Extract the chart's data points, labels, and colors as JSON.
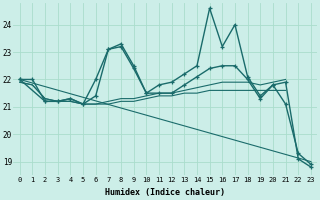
{
  "xlabel": "Humidex (Indice chaleur)",
  "bg_color": "#cceee8",
  "line_color": "#1a6b6b",
  "grid_color": "#aaddcc",
  "xlim": [
    -0.5,
    23.5
  ],
  "ylim": [
    18.5,
    24.8
  ],
  "xticks": [
    0,
    1,
    2,
    3,
    4,
    5,
    6,
    7,
    8,
    9,
    10,
    11,
    12,
    13,
    14,
    15,
    16,
    17,
    18,
    19,
    20,
    21,
    22,
    23
  ],
  "yticks": [
    19,
    20,
    21,
    22,
    23,
    24
  ],
  "series": [
    {
      "x": [
        0,
        1,
        2,
        3,
        4,
        5,
        6,
        7,
        8,
        9,
        10,
        11,
        12,
        13,
        14,
        15,
        16,
        17,
        18,
        19,
        20,
        21,
        22,
        23
      ],
      "y": [
        22.0,
        22.0,
        21.2,
        21.2,
        21.3,
        21.1,
        22.0,
        23.1,
        23.2,
        22.4,
        21.5,
        21.8,
        21.9,
        22.2,
        22.5,
        24.6,
        23.2,
        24.0,
        22.1,
        21.4,
        21.8,
        21.1,
        19.3,
        18.9
      ],
      "marker": true,
      "lw": 1.0
    },
    {
      "x": [
        0,
        2,
        3,
        4,
        5,
        6,
        7,
        8,
        9,
        10,
        11,
        12,
        13,
        14,
        15,
        16,
        17,
        18,
        19,
        20,
        21,
        22,
        23
      ],
      "y": [
        22.0,
        21.2,
        21.2,
        21.3,
        21.1,
        21.4,
        23.1,
        23.3,
        22.5,
        21.5,
        21.5,
        21.5,
        21.8,
        22.1,
        22.4,
        22.5,
        22.5,
        22.0,
        21.3,
        21.8,
        21.9,
        19.1,
        18.8
      ],
      "marker": true,
      "lw": 1.0
    },
    {
      "x": [
        0,
        1,
        2,
        3,
        4,
        5,
        6,
        7,
        8,
        9,
        10,
        11,
        12,
        13,
        14,
        15,
        16,
        17,
        18,
        19,
        20,
        21
      ],
      "y": [
        21.9,
        21.8,
        21.3,
        21.2,
        21.2,
        21.1,
        21.1,
        21.1,
        21.2,
        21.2,
        21.3,
        21.4,
        21.4,
        21.5,
        21.5,
        21.6,
        21.6,
        21.6,
        21.6,
        21.6,
        21.6,
        21.6
      ],
      "marker": false,
      "lw": 0.8
    },
    {
      "x": [
        0,
        1,
        2,
        3,
        4,
        5,
        6,
        7,
        8,
        9,
        10,
        11,
        12,
        13,
        14,
        15,
        16,
        17,
        18,
        19,
        20,
        21
      ],
      "y": [
        21.9,
        21.8,
        21.3,
        21.2,
        21.2,
        21.1,
        21.1,
        21.2,
        21.3,
        21.3,
        21.4,
        21.5,
        21.5,
        21.6,
        21.7,
        21.8,
        21.9,
        21.9,
        21.9,
        21.8,
        21.9,
        22.0
      ],
      "marker": false,
      "lw": 0.8
    },
    {
      "x": [
        0,
        23
      ],
      "y": [
        22.0,
        19.0
      ],
      "marker": false,
      "lw": 0.8
    }
  ]
}
